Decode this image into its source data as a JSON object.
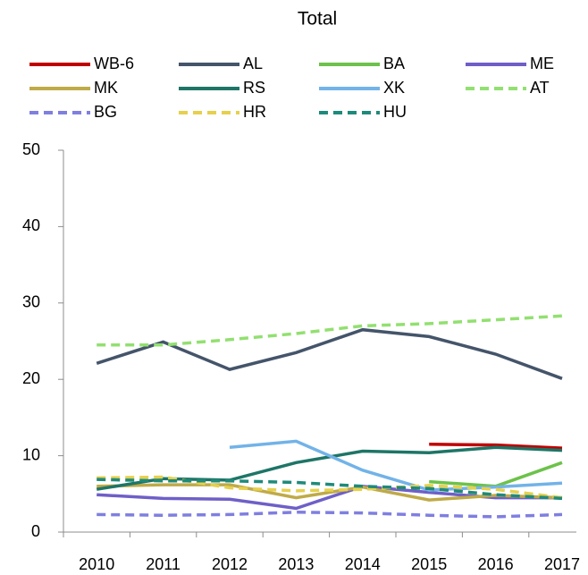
{
  "chart_data": {
    "type": "line",
    "title": "Total",
    "categories": [
      "2010",
      "2011",
      "2012",
      "2013",
      "2014",
      "2015",
      "2016",
      "2017"
    ],
    "ylim": [
      0,
      50
    ],
    "yticks": [
      0,
      10,
      20,
      30,
      40,
      50
    ],
    "series": [
      {
        "name": "WB-6",
        "color": "#c00000",
        "dashed": false,
        "values": [
          null,
          null,
          null,
          null,
          null,
          11.5,
          11.4,
          11.0
        ]
      },
      {
        "name": "AL",
        "color": "#44546a",
        "dashed": false,
        "values": [
          22.1,
          24.9,
          21.3,
          23.5,
          26.5,
          25.6,
          23.3,
          20.1
        ]
      },
      {
        "name": "BA",
        "color": "#6cc24a",
        "dashed": false,
        "values": [
          null,
          null,
          null,
          null,
          null,
          6.6,
          6.0,
          9.1
        ]
      },
      {
        "name": "ME",
        "color": "#6e5fc8",
        "dashed": false,
        "values": [
          4.9,
          4.4,
          4.3,
          3.1,
          6.0,
          5.2,
          4.5,
          4.5
        ]
      },
      {
        "name": "MK",
        "color": "#bfaa48",
        "dashed": false,
        "values": [
          6.0,
          6.2,
          6.2,
          4.5,
          5.9,
          4.2,
          4.8,
          4.5
        ]
      },
      {
        "name": "RS",
        "color": "#1e7566",
        "dashed": false,
        "values": [
          5.6,
          7.0,
          6.8,
          9.1,
          10.6,
          10.4,
          11.1,
          10.7
        ]
      },
      {
        "name": "XK",
        "color": "#72b3e8",
        "dashed": false,
        "values": [
          null,
          null,
          11.1,
          11.9,
          8.1,
          5.5,
          5.9,
          6.4
        ]
      },
      {
        "name": "AT",
        "color": "#92e070",
        "dashed": true,
        "values": [
          24.5,
          24.5,
          25.2,
          26.0,
          27.0,
          27.3,
          27.8,
          28.3
        ]
      },
      {
        "name": "BG",
        "color": "#7f7fe0",
        "dashed": true,
        "values": [
          2.3,
          2.2,
          2.3,
          2.6,
          2.5,
          2.2,
          2.0,
          2.3
        ]
      },
      {
        "name": "HR",
        "color": "#e6d04e",
        "dashed": true,
        "values": [
          7.1,
          7.2,
          5.8,
          5.4,
          5.6,
          6.1,
          5.6,
          4.5
        ]
      },
      {
        "name": "HU",
        "color": "#1f8a7a",
        "dashed": true,
        "values": [
          6.9,
          6.7,
          6.7,
          6.5,
          6.0,
          5.7,
          4.9,
          4.4
        ]
      }
    ]
  }
}
